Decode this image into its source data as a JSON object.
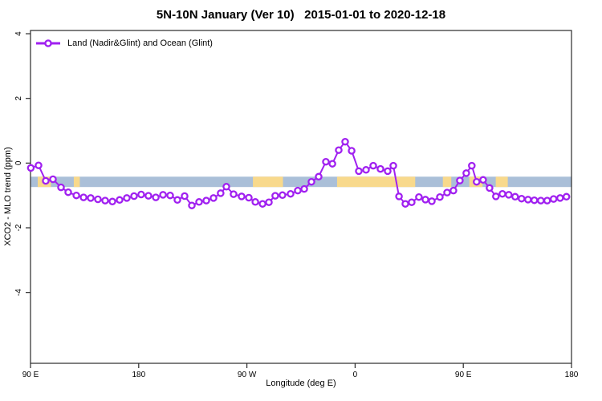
{
  "chart_data": {
    "type": "line",
    "title": "5N-10N January (Ver 10)   2015-01-01 to 2020-12-18",
    "xlabel": "Longitude (deg E)",
    "ylabel": "XCO2 - MLO trend (ppm)",
    "legend": [
      {
        "label": "Land (Nadir&Glint) and Ocean (Glint)",
        "color": "#a020f0",
        "marker": "open-circle"
      }
    ],
    "x_axis": {
      "description": "longitude wrapping eastward from 90E, total span 450 degrees",
      "span_deg": 450,
      "ticks": [
        {
          "pos_deg": 0,
          "label": "90 E"
        },
        {
          "pos_deg": 90,
          "label": "180"
        },
        {
          "pos_deg": 180,
          "label": "90 W"
        },
        {
          "pos_deg": 270,
          "label": "0"
        },
        {
          "pos_deg": 360,
          "label": "90 E"
        },
        {
          "pos_deg": 450,
          "label": "180"
        }
      ]
    },
    "y_axis": {
      "ticks": [
        4,
        2,
        0,
        -2,
        -4
      ],
      "ylim": [
        -6.19,
        4.1
      ]
    },
    "map_band": {
      "description": "land/ocean strip for the 5N-10N latitude belt",
      "y_range_ppm": [
        -0.74,
        -0.42
      ],
      "ocean_color": "#aabfd8",
      "land_color": "#f8d98c",
      "land_patches_deg": [
        [
          6,
          17
        ],
        [
          36,
          41
        ],
        [
          185,
          210
        ],
        [
          255,
          320
        ],
        [
          343,
          350
        ],
        [
          365,
          376
        ],
        [
          387,
          397
        ]
      ]
    },
    "series": [
      {
        "name": "Land (Nadir&Glint) and Ocean (Glint)",
        "color": "#a020f0",
        "points": [
          [
            0.3,
            -0.15
          ],
          [
            6.7,
            -0.07
          ],
          [
            12.7,
            -0.55
          ],
          [
            18.7,
            -0.5
          ],
          [
            25.4,
            -0.75
          ],
          [
            31.4,
            -0.9
          ],
          [
            38.1,
            -1.0
          ],
          [
            44.1,
            -1.06
          ],
          [
            50.1,
            -1.08
          ],
          [
            56.1,
            -1.12
          ],
          [
            62.1,
            -1.16
          ],
          [
            68.1,
            -1.19
          ],
          [
            74.1,
            -1.14
          ],
          [
            80.1,
            -1.08
          ],
          [
            86.1,
            -1.02
          ],
          [
            92.1,
            -0.97
          ],
          [
            98.1,
            -1.01
          ],
          [
            104.2,
            -1.06
          ],
          [
            110.2,
            -0.98
          ],
          [
            116.2,
            -1.0
          ],
          [
            122.2,
            -1.14
          ],
          [
            128.2,
            -1.02
          ],
          [
            134.2,
            -1.31
          ],
          [
            140.2,
            -1.2
          ],
          [
            146.2,
            -1.16
          ],
          [
            152.2,
            -1.08
          ],
          [
            158.2,
            -0.93
          ],
          [
            162.9,
            -0.73
          ],
          [
            168.9,
            -0.96
          ],
          [
            175.6,
            -1.03
          ],
          [
            181.6,
            -1.07
          ],
          [
            187.0,
            -1.2
          ],
          [
            193.0,
            -1.26
          ],
          [
            198.3,
            -1.21
          ],
          [
            203.6,
            -1.01
          ],
          [
            209.6,
            -0.99
          ],
          [
            216.3,
            -0.95
          ],
          [
            222.3,
            -0.85
          ],
          [
            227.7,
            -0.8
          ],
          [
            233.7,
            -0.58
          ],
          [
            239.7,
            -0.42
          ],
          [
            245.7,
            0.04
          ],
          [
            251.1,
            -0.02
          ],
          [
            256.4,
            0.4
          ],
          [
            261.7,
            0.66
          ],
          [
            267.1,
            0.38
          ],
          [
            273.1,
            -0.25
          ],
          [
            279.1,
            -0.21
          ],
          [
            285.1,
            -0.08
          ],
          [
            291.1,
            -0.18
          ],
          [
            297.1,
            -0.25
          ],
          [
            301.8,
            -0.08
          ],
          [
            306.5,
            -1.03
          ],
          [
            311.8,
            -1.26
          ],
          [
            317.1,
            -1.21
          ],
          [
            323.1,
            -1.05
          ],
          [
            328.5,
            -1.13
          ],
          [
            333.8,
            -1.18
          ],
          [
            340.5,
            -1.05
          ],
          [
            346.5,
            -0.91
          ],
          [
            351.8,
            -0.85
          ],
          [
            357.1,
            -0.54
          ],
          [
            362.5,
            -0.31
          ],
          [
            367.1,
            -0.08
          ],
          [
            371.1,
            -0.58
          ],
          [
            376.5,
            -0.52
          ],
          [
            381.8,
            -0.77
          ],
          [
            387.1,
            -1.03
          ],
          [
            392.5,
            -0.95
          ],
          [
            397.8,
            -0.98
          ],
          [
            403.1,
            -1.04
          ],
          [
            408.5,
            -1.1
          ],
          [
            413.8,
            -1.13
          ],
          [
            419.1,
            -1.15
          ],
          [
            424.5,
            -1.16
          ],
          [
            429.8,
            -1.16
          ],
          [
            435.1,
            -1.11
          ],
          [
            440.5,
            -1.08
          ],
          [
            445.8,
            -1.04
          ]
        ]
      }
    ]
  }
}
